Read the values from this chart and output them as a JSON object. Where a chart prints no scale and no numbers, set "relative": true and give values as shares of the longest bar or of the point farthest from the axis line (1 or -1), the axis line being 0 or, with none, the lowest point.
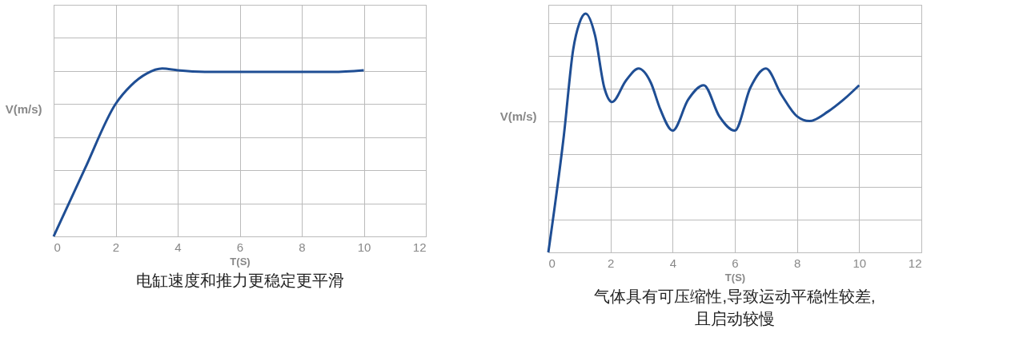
{
  "chart_data": [
    {
      "type": "line",
      "relative": true,
      "xlabel": "T(S)",
      "ylabel": "V(m/s)",
      "xlim": [
        0,
        12
      ],
      "xticks": [
        0,
        2,
        4,
        6,
        8,
        10,
        12
      ],
      "grid": true,
      "annotations": [
        "电缸速度和推力更稳定更平滑"
      ],
      "series": [
        {
          "color": "#1f4e94",
          "x": [
            0,
            1,
            2,
            2.5,
            3,
            3.5,
            4,
            5,
            6,
            7,
            8,
            9,
            10
          ],
          "values": [
            0,
            0.4,
            0.79,
            0.9,
            0.97,
            1.0,
            0.99,
            0.98,
            0.98,
            0.98,
            0.98,
            0.98,
            0.99
          ]
        }
      ]
    },
    {
      "type": "line",
      "relative": true,
      "xlabel": "T(S)",
      "ylabel": "V(m/s)",
      "xlim": [
        0,
        12
      ],
      "xticks": [
        0,
        2,
        4,
        6,
        8,
        10,
        12
      ],
      "grid": true,
      "annotations": [
        "气体具有可压缩性,导致运动平稳性较差,且启动较慢"
      ],
      "series": [
        {
          "color": "#1f4e94",
          "x": [
            0,
            0.5,
            0.8,
            1.0,
            1.2,
            1.5,
            1.8,
            2.05,
            2.5,
            2.9,
            3.3,
            3.6,
            4.0,
            4.5,
            5.0,
            5.5,
            6.0,
            6.5,
            7.0,
            7.5,
            8.0,
            8.4,
            9.0,
            9.5,
            10
          ],
          "values": [
            0,
            0.49,
            0.85,
            0.96,
            1.0,
            0.91,
            0.69,
            0.63,
            0.72,
            0.77,
            0.71,
            0.6,
            0.51,
            0.64,
            0.7,
            0.57,
            0.51,
            0.69,
            0.77,
            0.66,
            0.57,
            0.55,
            0.59,
            0.64,
            0.7
          ]
        }
      ]
    }
  ]
}
